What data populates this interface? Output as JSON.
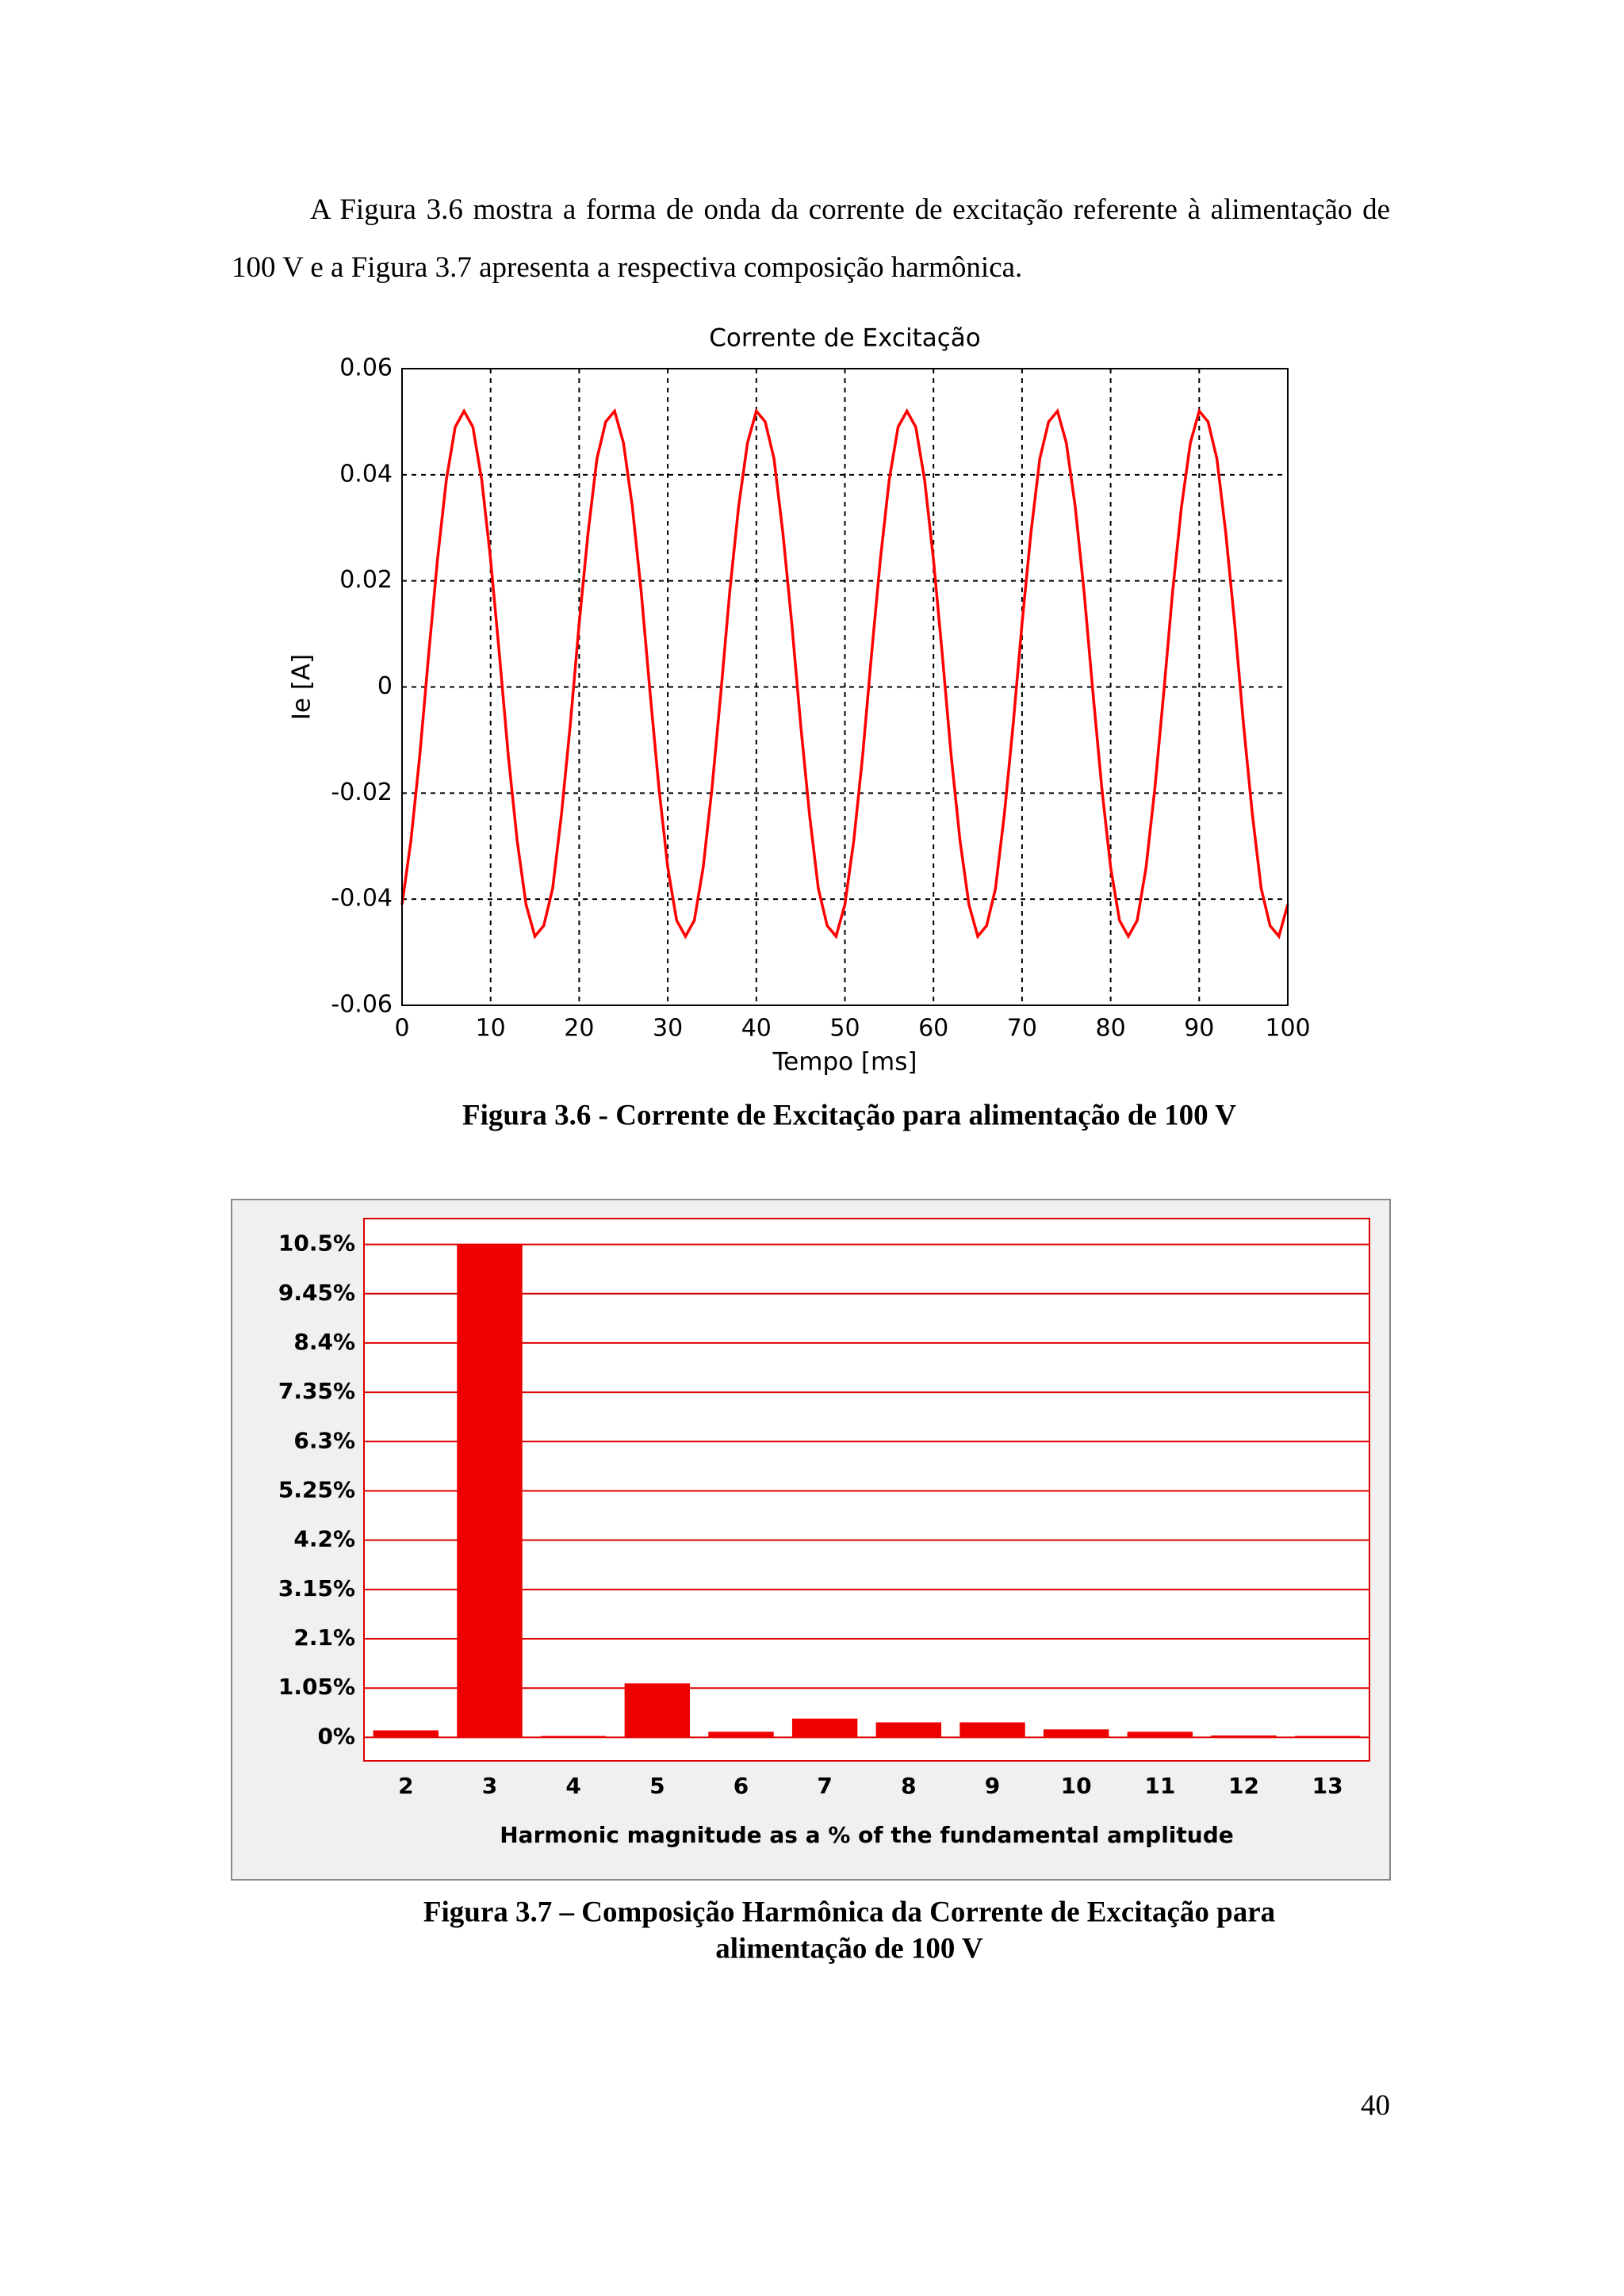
{
  "paragraph": "A Figura 3.6 mostra a forma de onda da corrente de excitação referente à alimentação de 100 V e a Figura 3.7 apresenta a respectiva composição harmônica.",
  "chart_data": [
    {
      "type": "line",
      "title": "Corrente de Excitação",
      "x_label": "Tempo [ms]",
      "y_label": "Ie [A]",
      "color": "#ff0000",
      "grid": true,
      "x": [
        0,
        1,
        2,
        3,
        4,
        5,
        6,
        7,
        8,
        9,
        10,
        11,
        12,
        13,
        14,
        15,
        16,
        17,
        18,
        19,
        20,
        21,
        22,
        23,
        24,
        25,
        26,
        27,
        28,
        29,
        30,
        31,
        32,
        33,
        34,
        35,
        36,
        37,
        38,
        39,
        40,
        41,
        42,
        43,
        44,
        45,
        46,
        47,
        48,
        49,
        50,
        51,
        52,
        53,
        54,
        55,
        56,
        57,
        58,
        59,
        60,
        61,
        62,
        63,
        64,
        65,
        66,
        67,
        68,
        69,
        70,
        71,
        72,
        73,
        74,
        75,
        76,
        77,
        78,
        79,
        80,
        81,
        82,
        83,
        84,
        85,
        86,
        87,
        88,
        89,
        90,
        91,
        92,
        93,
        94,
        95,
        96,
        97,
        98,
        99,
        100
      ],
      "values": [
        -0.041,
        -0.029,
        -0.013,
        0.006,
        0.024,
        0.039,
        0.049,
        0.052,
        0.049,
        0.039,
        0.024,
        0.006,
        -0.013,
        -0.029,
        -0.041,
        -0.047,
        -0.045,
        -0.038,
        -0.024,
        -0.007,
        0.012,
        0.029,
        0.043,
        0.05,
        0.052,
        0.046,
        0.034,
        0.018,
        -0.001,
        -0.019,
        -0.034,
        -0.044,
        -0.047,
        -0.044,
        -0.034,
        -0.019,
        -0.001,
        0.018,
        0.034,
        0.046,
        0.052,
        0.05,
        0.043,
        0.029,
        0.012,
        -0.007,
        -0.024,
        -0.038,
        -0.045,
        -0.047,
        -0.041,
        -0.029,
        -0.013,
        0.006,
        0.024,
        0.039,
        0.049,
        0.052,
        0.049,
        0.039,
        0.024,
        0.006,
        -0.013,
        -0.029,
        -0.041,
        -0.047,
        -0.045,
        -0.038,
        -0.024,
        -0.007,
        0.012,
        0.029,
        0.043,
        0.05,
        0.052,
        0.046,
        0.034,
        0.018,
        -0.001,
        -0.019,
        -0.034,
        -0.044,
        -0.047,
        -0.044,
        -0.034,
        -0.019,
        -0.001,
        0.018,
        0.034,
        0.046,
        0.052,
        0.05,
        0.043,
        0.029,
        0.012,
        -0.007,
        -0.024,
        -0.038,
        -0.045,
        -0.047,
        -0.041
      ],
      "xlim": [
        0,
        100
      ],
      "xticks": [
        0,
        10,
        20,
        30,
        40,
        50,
        60,
        70,
        80,
        90,
        100
      ],
      "ylim": [
        -0.06,
        0.06
      ],
      "yticks": [
        -0.06,
        -0.04,
        -0.02,
        0,
        0.02,
        0.04,
        0.06
      ]
    },
    {
      "type": "bar",
      "x_label": "Harmonic magnitude as a % of the fundamental amplitude",
      "color": "#ee0000",
      "grid": true,
      "categories": [
        "2",
        "3",
        "4",
        "5",
        "6",
        "7",
        "8",
        "9",
        "10",
        "11",
        "12",
        "13"
      ],
      "values": [
        0.15,
        10.5,
        0.03,
        1.15,
        0.12,
        0.4,
        0.32,
        0.32,
        0.17,
        0.12,
        0.04,
        0.03
      ],
      "ylim": [
        -0.5,
        11.05
      ],
      "yticks": [
        {
          "value": 0,
          "label": "0%"
        },
        {
          "value": 1.05,
          "label": "1.05%"
        },
        {
          "value": 2.1,
          "label": "2.1%"
        },
        {
          "value": 3.15,
          "label": "3.15%"
        },
        {
          "value": 4.2,
          "label": "4.2%"
        },
        {
          "value": 5.25,
          "label": "5.25%"
        },
        {
          "value": 6.3,
          "label": "6.3%"
        },
        {
          "value": 7.35,
          "label": "7.35%"
        },
        {
          "value": 8.4,
          "label": "8.4%"
        },
        {
          "value": 9.45,
          "label": "9.45%"
        },
        {
          "value": 10.5,
          "label": "10.5%"
        }
      ]
    }
  ],
  "captions": [
    [
      "Figura 3.6 - Corrente de Excitação para alimentação de 100 V"
    ],
    [
      "Figura 3.7 – Composição Harmônica da Corrente de Excitação para",
      "alimentação de 100 V"
    ]
  ],
  "page_number": "40"
}
